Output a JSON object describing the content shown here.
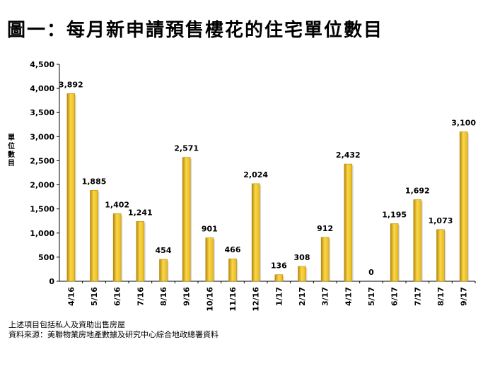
{
  "title": "圖一：每月新申請預售樓花的住宅單位數目",
  "notes": {
    "line1": "上述項目包括私人及資助出售房屋",
    "line2": "資料來源：美聯物業房地產數據及研究中心綜合地政總署資料"
  },
  "colors": {
    "bar": "#E8B81E",
    "bar_dark": "#B8860B",
    "bar_light": "#F8D848"
  },
  "chart_data": {
    "type": "bar",
    "title": "圖一：每月新申請預售樓花的住宅單位數目",
    "ylabel": "單位數目",
    "xlabel": "",
    "ylim": [
      0,
      4500
    ],
    "yticks": [
      0,
      500,
      1000,
      1500,
      2000,
      2500,
      3000,
      3500,
      4000,
      4500
    ],
    "ytick_labels": [
      "0",
      "500",
      "1,000",
      "1,500",
      "2,000",
      "2,500",
      "3,000",
      "3,500",
      "4,000",
      "4,500"
    ],
    "categories": [
      "4/16",
      "5/16",
      "6/16",
      "7/16",
      "8/16",
      "9/16",
      "10/16",
      "11/16",
      "12/16",
      "1/17",
      "2/17",
      "3/17",
      "4/17",
      "5/17",
      "6/17",
      "7/17",
      "8/17",
      "9/17"
    ],
    "values": [
      3892,
      1885,
      1402,
      1241,
      454,
      2571,
      901,
      466,
      2024,
      136,
      308,
      912,
      2432,
      0,
      1195,
      1692,
      1073,
      3100
    ],
    "value_labels": [
      "3,892",
      "1,885",
      "1,402",
      "1,241",
      "454",
      "2,571",
      "901",
      "466",
      "2,024",
      "136",
      "308",
      "912",
      "2,432",
      "0",
      "1,195",
      "1,692",
      "1,073",
      "3,100"
    ],
    "grid": false,
    "legend": "none"
  }
}
